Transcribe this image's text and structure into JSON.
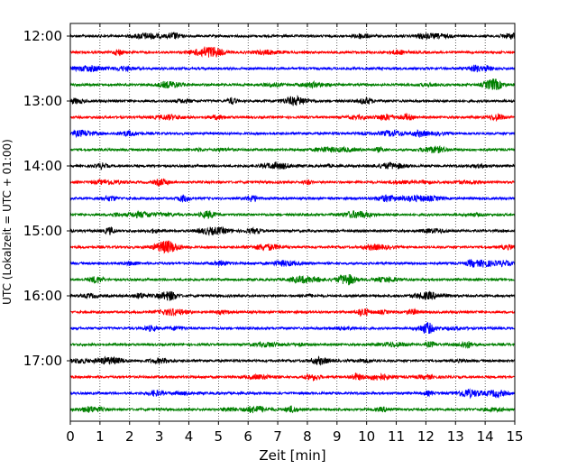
{
  "chart_data": {
    "type": "line",
    "title": "",
    "xlabel": "Zeit  [min]",
    "ylabel": "UTC (Lokalzeit = UTC + 01:00)",
    "xlim": [
      0,
      15
    ],
    "x_ticks": [
      "0",
      "1",
      "2",
      "3",
      "4",
      "5",
      "6",
      "7",
      "8",
      "9",
      "10",
      "11",
      "12",
      "13",
      "14",
      "15"
    ],
    "y_ticks": [
      "12:00",
      "13:00",
      "14:00",
      "15:00",
      "16:00",
      "17:00"
    ],
    "grid": "vertical dotted lines at each minute",
    "trace_interval_min": 15,
    "trace_start": "12:00",
    "trace_count": 24,
    "trace_colors": [
      "#000000",
      "#ff0000",
      "#0000ff",
      "#008000"
    ],
    "traces": [
      {
        "start": "12:00"
      },
      {
        "start": "12:15"
      },
      {
        "start": "12:30"
      },
      {
        "start": "12:45"
      },
      {
        "start": "13:00"
      },
      {
        "start": "13:15"
      },
      {
        "start": "13:30"
      },
      {
        "start": "13:45"
      },
      {
        "start": "14:00"
      },
      {
        "start": "14:15"
      },
      {
        "start": "14:30"
      },
      {
        "start": "14:45"
      },
      {
        "start": "15:00"
      },
      {
        "start": "15:15"
      },
      {
        "start": "15:30"
      },
      {
        "start": "15:45"
      },
      {
        "start": "16:00"
      },
      {
        "start": "16:15"
      },
      {
        "start": "16:30"
      },
      {
        "start": "16:45"
      },
      {
        "start": "17:00"
      },
      {
        "start": "17:15"
      },
      {
        "start": "17:30"
      },
      {
        "start": "17:45"
      }
    ]
  }
}
